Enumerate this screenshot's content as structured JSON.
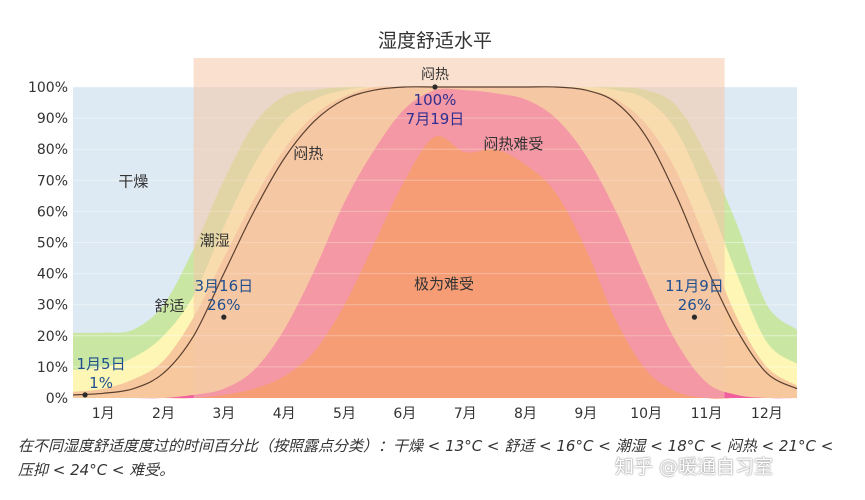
{
  "chart_data": {
    "type": "area",
    "title": "湿度舒适水平",
    "xlabel": "",
    "ylabel": "",
    "ylim": [
      0,
      100
    ],
    "yticks": [
      "0%",
      "10%",
      "20%",
      "30%",
      "40%",
      "50%",
      "60%",
      "70%",
      "80%",
      "90%",
      "100%"
    ],
    "months": [
      "1月",
      "2月",
      "3月",
      "4月",
      "5月",
      "6月",
      "7月",
      "8月",
      "9月",
      "10月",
      "11月",
      "12月"
    ],
    "x": [
      0,
      0.5,
      1,
      1.5,
      2,
      2.5,
      3,
      3.5,
      4,
      4.5,
      5,
      5.5,
      6,
      6.5,
      7,
      7.5,
      8,
      8.5,
      9,
      9.5,
      10,
      10.5,
      11,
      11.5,
      12
    ],
    "series": [
      {
        "name": "干燥",
        "color": "#dde9f3",
        "cumulative": [
          100,
          100,
          100,
          100,
          100,
          100,
          100,
          100,
          100,
          100,
          100,
          100,
          100,
          100,
          100,
          100,
          100,
          100,
          100,
          100,
          100,
          100,
          100,
          100,
          100
        ]
      },
      {
        "name": "舒适",
        "color": "#c9e6a3",
        "cumulative": [
          21,
          21,
          22,
          30,
          48,
          70,
          88,
          97,
          99,
          100,
          100,
          100,
          100,
          100,
          100,
          100,
          100,
          100,
          100,
          99,
          94,
          78,
          56,
          30,
          22
        ]
      },
      {
        "name": "潮湿",
        "color": "#fdf6b4",
        "cumulative": [
          9,
          10,
          13,
          20,
          33,
          55,
          75,
          89,
          96,
          99,
          100,
          100,
          100,
          100,
          100,
          100,
          100,
          100,
          99,
          96,
          86,
          65,
          40,
          18,
          11
        ]
      },
      {
        "name": "闷热",
        "color": "#f7c79d",
        "cumulative": [
          2,
          3,
          6,
          12,
          26,
          45,
          64,
          80,
          91,
          97,
          100,
          100,
          100,
          100,
          100,
          100,
          100,
          99,
          96,
          88,
          73,
          50,
          26,
          10,
          4
        ]
      },
      {
        "name": "闷热难受",
        "color": "#f0609f",
        "cumulative": [
          0,
          0,
          0,
          0,
          1,
          3,
          9,
          22,
          41,
          63,
          80,
          93,
          99,
          99,
          98,
          96,
          90,
          78,
          60,
          38,
          18,
          5,
          1,
          0,
          0
        ]
      },
      {
        "name": "极为难受",
        "color": "#f76a3a",
        "cumulative": [
          0,
          0,
          0,
          0,
          0,
          1,
          3,
          7,
          15,
          30,
          50,
          70,
          84,
          79,
          80,
          75,
          66,
          48,
          25,
          9,
          2,
          0,
          0,
          0,
          0
        ]
      }
    ],
    "comfort_line": [
      1,
      1.5,
      3,
      8,
      20,
      40,
      60,
      77,
      89,
      96,
      99,
      100,
      100,
      100,
      100,
      100,
      100,
      99,
      95,
      84,
      65,
      42,
      22,
      8,
      3
    ],
    "top_band": {
      "label": "闷热",
      "x_range": [
        2,
        10.8
      ]
    },
    "region_labels": [
      {
        "text": "干燥",
        "x": 1.0,
        "y": 68
      },
      {
        "text": "舒适",
        "x": 1.6,
        "y": 28
      },
      {
        "text": "潮湿",
        "x": 2.35,
        "y": 49
      },
      {
        "text": "闷热",
        "x": 3.9,
        "y": 77
      },
      {
        "text": "闷热难受",
        "x": 7.3,
        "y": 80
      },
      {
        "text": "极为难受",
        "x": 6.15,
        "y": 35
      }
    ],
    "annotations": [
      {
        "lines": [
          "1月5日",
          "1%"
        ],
        "x": 0.2,
        "y": 1
      },
      {
        "lines": [
          "3月16日",
          "26%"
        ],
        "x": 2.5,
        "y": 26
      },
      {
        "lines": [
          "100%",
          "7月19日"
        ],
        "x": 6.0,
        "y": 100
      },
      {
        "lines": [
          "11月9日",
          "26%"
        ],
        "x": 10.3,
        "y": 26
      }
    ]
  },
  "caption": "在不同湿度舒适度度过的时间百分比（按照露点分类）：干燥 < 13°C < 舒适 < 16°C < 潮湿 < 18°C < 闷热 < 21°C < 压抑 < 24°C < 难受。",
  "watermark": "知乎 @暖通自习室"
}
